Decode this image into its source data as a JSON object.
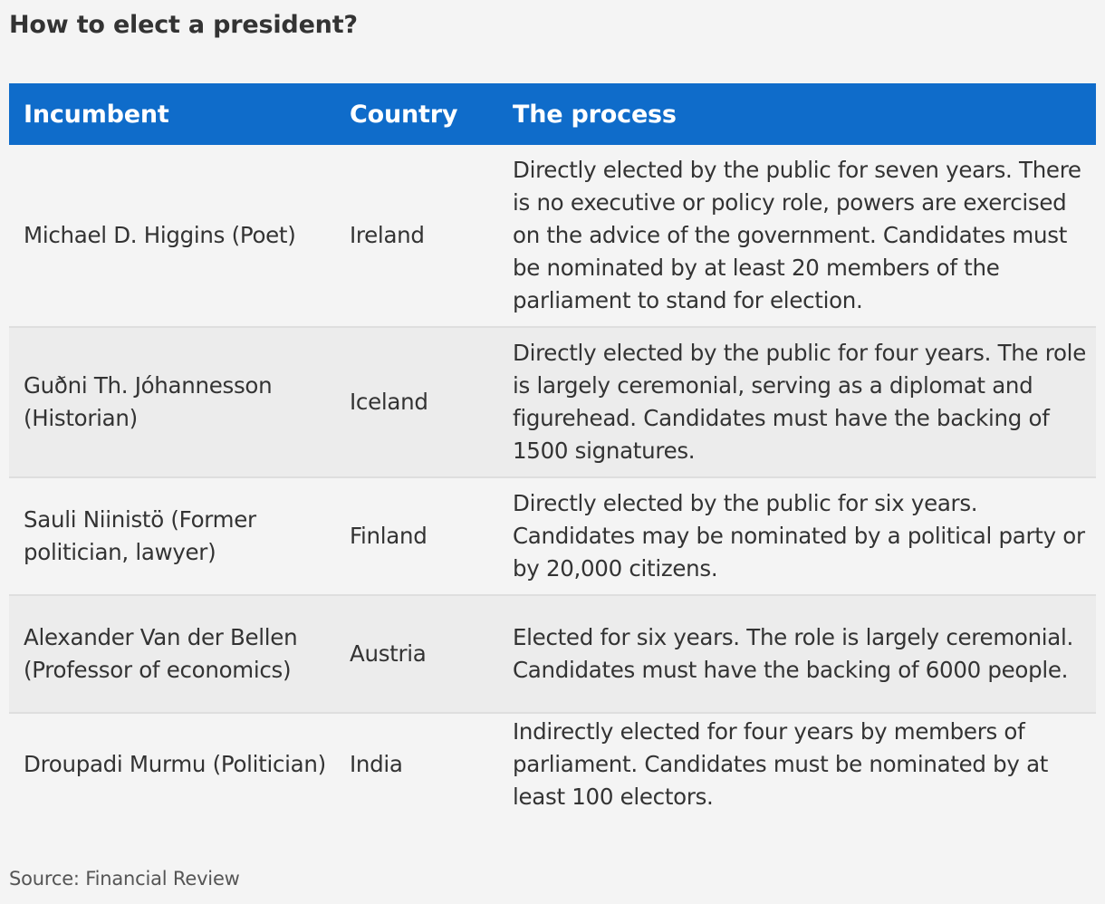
{
  "title": "How to elect a president?",
  "table": {
    "headers": {
      "incumbent": "Incumbent",
      "country": "Country",
      "process": "The process"
    },
    "rows": [
      {
        "incumbent": "Michael D. Higgins (Poet)",
        "country": "Ireland",
        "process": "Directly elected by the public for seven years. There is no executive or policy role, powers are exercised on the advice of the government. Candidates must be nominated by at least 20 members of the parliament to stand for election."
      },
      {
        "incumbent": "Guðni Th. Jóhannesson (Historian)",
        "country": "Iceland",
        "process": "Directly elected by the public for four years. The role is largely ceremonial, serving as a diplomat and figurehead. Candidates must have the backing of 1500 signatures."
      },
      {
        "incumbent": "Sauli Niinistö (Former politician, lawyer)",
        "country": "Finland",
        "process": "Directly elected by the public for six years. Candidates may be nominated by a political party or by 20,000 citizens."
      },
      {
        "incumbent": "Alexander Van der Bellen (Professor of economics)",
        "country": "Austria",
        "process": "Elected for six years. The role is largely ceremonial. Candidates must have the backing of 6000 people."
      },
      {
        "incumbent": "Droupadi Murmu (Politician)",
        "country": "India",
        "process": "Indirectly elected for four years by members of parliament. Candidates must be nominated by at least 100 electors."
      }
    ]
  },
  "source": "Source: Financial Review",
  "colors": {
    "header_bg": "#0f6cca",
    "alt_row_bg": "#ececec",
    "page_bg": "#f4f4f4"
  }
}
